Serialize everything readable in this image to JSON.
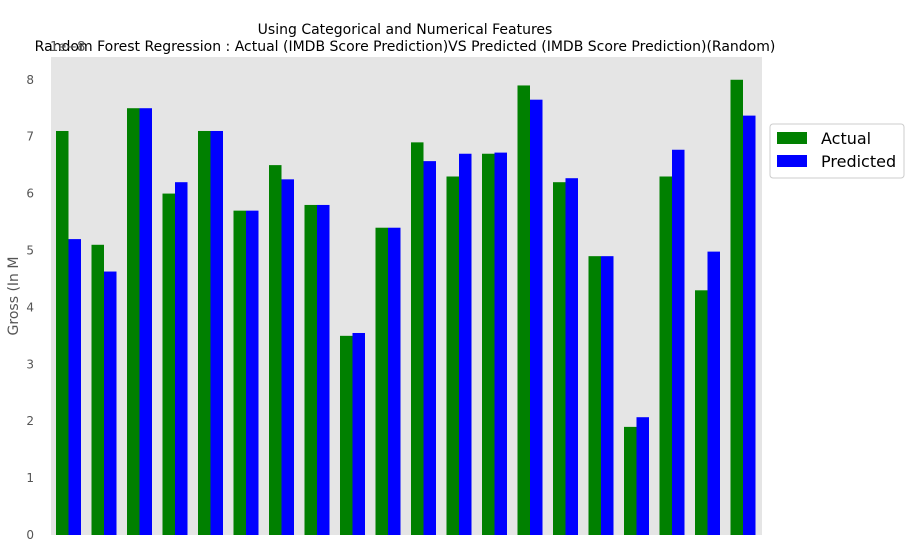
{
  "chart_data": {
    "type": "bar",
    "title": "Using Categorical and Numerical Features",
    "subtitle": "Random Forest Regression : Actual (IMDB Score Prediction)VS Predicted (IMDB Score Prediction)(Random)",
    "xlabel": "",
    "ylabel": "Gross (In M",
    "y_offset_text": "1e−8",
    "ylim": [
      0,
      8.4
    ],
    "yticks": [
      "0",
      "1",
      "2",
      "3",
      "4",
      "5",
      "6",
      "7",
      "8"
    ],
    "grid": false,
    "legend_position": "right-outside",
    "background": "#e5e5e5",
    "series": [
      {
        "name": "Actual",
        "color": "#008000",
        "values": [
          7.1,
          5.1,
          7.5,
          6.0,
          7.1,
          5.7,
          6.5,
          5.8,
          3.5,
          5.4,
          6.9,
          6.3,
          6.7,
          7.9,
          6.2,
          4.9,
          1.9,
          6.3,
          4.3,
          8.0
        ]
      },
      {
        "name": "Predicted",
        "color": "#0000ff",
        "values": [
          5.2,
          4.63,
          7.5,
          6.2,
          7.1,
          5.7,
          6.25,
          5.8,
          3.55,
          5.4,
          6.57,
          6.7,
          6.72,
          7.65,
          6.27,
          4.9,
          2.07,
          6.77,
          4.98,
          7.37
        ]
      }
    ]
  }
}
